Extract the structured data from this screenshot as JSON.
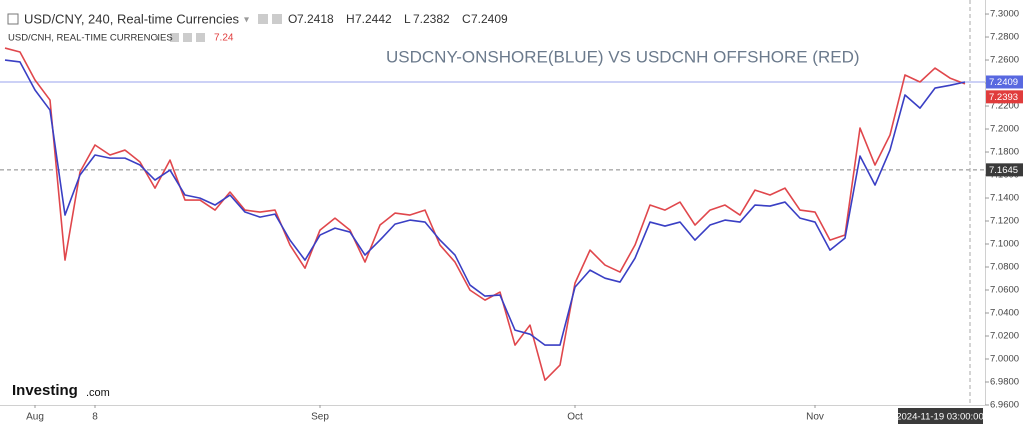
{
  "header": {
    "symbol": "USD/CNY, 240, Real-time Currencies",
    "ohlc": [
      {
        "label": "O",
        "value": 7.2418
      },
      {
        "label": "H",
        "value": 7.2442
      },
      {
        "label": "L",
        "value": 7.2382
      },
      {
        "label": "C",
        "value": 7.2409
      }
    ],
    "compare": {
      "symbol": "USD/CNH, REAL-TIME CURRENCIES",
      "value": 7.24
    }
  },
  "logo": {
    "brand": "Investing",
    "suffix": ".com"
  },
  "chart_data": {
    "type": "line",
    "title": "USDCNY-ONSHORE(BLUE) VS USDCNH OFFSHORE (RED)",
    "categories": [
      null,
      null,
      "Aug",
      null,
      null,
      null,
      "8",
      null,
      null,
      null,
      null,
      null,
      null,
      null,
      null,
      null,
      null,
      null,
      null,
      null,
      null,
      "Sep",
      null,
      null,
      null,
      null,
      null,
      null,
      null,
      null,
      null,
      null,
      null,
      null,
      null,
      null,
      null,
      null,
      "Oct",
      null,
      null,
      null,
      null,
      null,
      null,
      null,
      null,
      null,
      null,
      null,
      null,
      null,
      null,
      null,
      "Nov",
      null,
      null,
      null,
      null,
      null,
      null,
      null,
      null,
      null,
      null
    ],
    "series": [
      {
        "color": "#3a3fc4",
        "values": [
          7.26,
          7.2583,
          7.2339,
          7.2165,
          7.1252,
          7.16,
          7.1774,
          7.1747,
          7.1747,
          7.1687,
          7.1556,
          7.1643,
          7.1426,
          7.1399,
          7.1339,
          7.1426,
          7.1278,
          7.1234,
          7.126,
          7.1034,
          7.086,
          7.1078,
          7.1138,
          7.1104,
          7.0904,
          7.1034,
          7.1173,
          7.1208,
          7.1191,
          7.1034,
          7.0904,
          7.0643,
          7.0547,
          7.0556,
          7.0251,
          7.0216,
          7.0121,
          7.0121,
          7.0625,
          7.0773,
          7.0703,
          7.0669,
          7.0877,
          7.1191,
          7.1156,
          7.1191,
          7.1034,
          7.1165,
          7.1208,
          7.1191,
          7.1339,
          7.133,
          7.1365,
          7.1225,
          7.1191,
          7.0947,
          7.1051,
          7.1765,
          7.1513,
          7.1817,
          7.2296,
          7.2182,
          7.2356,
          7.238,
          7.2409
        ]
      },
      {
        "color": "#e0474c",
        "values": [
          7.2704,
          7.267,
          7.2426,
          7.2252,
          7.086,
          7.1626,
          7.1861,
          7.1774,
          7.1817,
          7.1713,
          7.1486,
          7.173,
          7.1382,
          7.1382,
          7.1295,
          7.1452,
          7.1295,
          7.1278,
          7.1295,
          7.0991,
          7.079,
          7.1121,
          7.1225,
          7.1121,
          7.0843,
          7.1165,
          7.1269,
          7.1252,
          7.1295,
          7.0991,
          7.0843,
          7.0599,
          7.0512,
          7.0582,
          7.0121,
          7.0295,
          6.9816,
          6.9947,
          7.066,
          7.0947,
          7.0817,
          7.0756,
          7.0991,
          7.1339,
          7.1295,
          7.1365,
          7.1165,
          7.1295,
          7.1339,
          7.1252,
          7.1469,
          7.1426,
          7.1486,
          7.1295,
          7.1278,
          7.1034,
          7.1078,
          7.2008,
          7.1687,
          7.1948,
          7.247,
          7.2409,
          7.253,
          7.2443,
          7.2393
        ]
      }
    ],
    "ylim": [
      6.96,
      7.3122
    ],
    "yticks": [
      {
        "value": 6.96,
        "label": "6.9600"
      },
      {
        "value": 6.98,
        "label": "6.9800"
      },
      {
        "value": 7.0,
        "label": "7.0000"
      },
      {
        "value": 7.02,
        "label": "7.0200"
      },
      {
        "value": 7.04,
        "label": "7.0400"
      },
      {
        "value": 7.06,
        "label": "7.0600"
      },
      {
        "value": 7.08,
        "label": "7.0800"
      },
      {
        "value": 7.1,
        "label": "7.1000"
      },
      {
        "value": 7.12,
        "label": "7.1200"
      },
      {
        "value": 7.14,
        "label": "7.1400"
      },
      {
        "value": 7.16,
        "label": "7.1600"
      },
      {
        "value": 7.18,
        "label": "7.1800"
      },
      {
        "value": 7.2,
        "label": "7.2000"
      },
      {
        "value": 7.22,
        "label": "7.2200"
      },
      {
        "value": 7.24,
        "label": "7.2400"
      },
      {
        "value": 7.26,
        "label": "7.2600"
      },
      {
        "value": 7.28,
        "label": "7.2800"
      },
      {
        "value": 7.3,
        "label": "7.3000"
      }
    ],
    "price_labels": [
      {
        "value": 7.2409,
        "color": "#5868e0"
      },
      {
        "value": 7.2393,
        "color": "#e03c3c"
      },
      {
        "value": 7.1645,
        "color": "#3a3a3a"
      }
    ],
    "crosshair_time": "2024-11-19 03:00:00"
  }
}
